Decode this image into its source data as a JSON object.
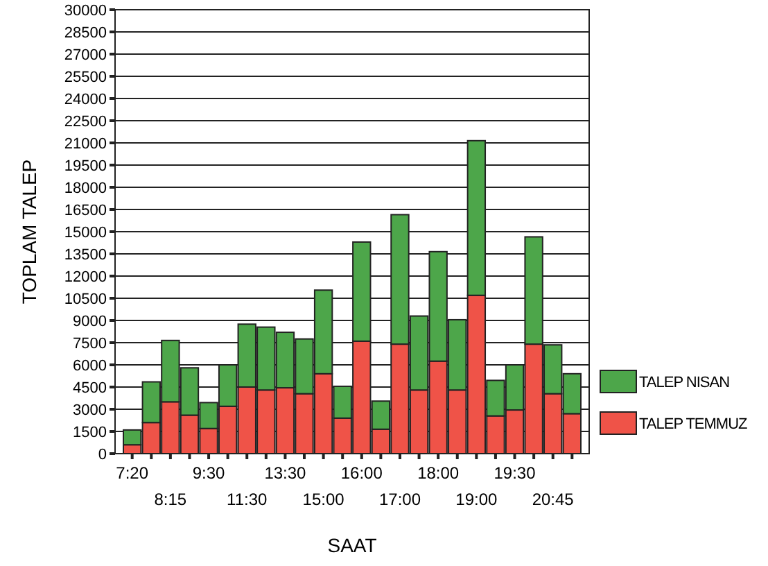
{
  "chart_data": {
    "type": "bar",
    "stacked": true,
    "xlabel": "SAAT",
    "ylabel": "TOPLAM TALEP",
    "categories": [
      "7:20",
      null,
      "8:15",
      null,
      "9:30",
      null,
      "11:30",
      null,
      "13:30",
      null,
      "15:00",
      null,
      "16:00",
      null,
      "17:00",
      null,
      "18:00",
      null,
      "19:00",
      null,
      "19:30",
      null,
      "20:45",
      null
    ],
    "series": [
      {
        "name": "TALEP TEMMUZ",
        "color": "#ef5348",
        "values": [
          600,
          2100,
          3500,
          2600,
          1700,
          3200,
          4500,
          4300,
          4450,
          4050,
          5400,
          2400,
          7600,
          1650,
          7400,
          4300,
          6250,
          4300,
          10700,
          2550,
          2950,
          7400,
          4050,
          2700
        ]
      },
      {
        "name": "TALEP NISAN",
        "color": "#4da64a",
        "values": [
          1000,
          2750,
          4150,
          3200,
          1750,
          2800,
          4250,
          4250,
          3750,
          3700,
          5650,
          2150,
          6700,
          1900,
          8750,
          5000,
          7400,
          4750,
          10450,
          2400,
          3050,
          7250,
          3300,
          2700
        ]
      }
    ],
    "ylim": [
      0,
      30000
    ],
    "yticks": [
      0,
      1500,
      3000,
      4500,
      6000,
      7500,
      9000,
      10500,
      12000,
      13500,
      15000,
      16500,
      18000,
      19500,
      21000,
      22500,
      24000,
      25500,
      27000,
      28500,
      30000
    ],
    "grid": "y",
    "legend": "bottom right"
  }
}
